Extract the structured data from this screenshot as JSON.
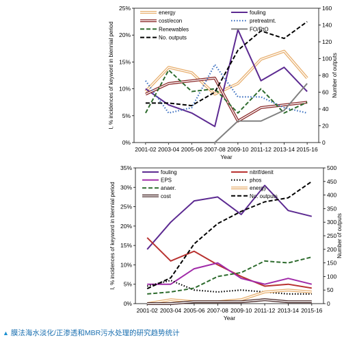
{
  "caption": "膜法海水淡化/正渗透和MBR污水处理的研究趋势统计",
  "chart_data": [
    {
      "type": "line",
      "xlabel": "Year",
      "ylabel": "I, % incidences of keyword in biennial period",
      "y2label": "Number of outputs",
      "categories": [
        "2001-02",
        "2003-04",
        "2005-06",
        "2007-08",
        "2009-10",
        "2011-12",
        "2013-14",
        "2015-16"
      ],
      "ylim": [
        0,
        25
      ],
      "yticks": [
        "0%",
        "5%",
        "10%",
        "15%",
        "20%",
        "25%"
      ],
      "y2lim": [
        0,
        160
      ],
      "y2ticks": [
        "0",
        "20",
        "40",
        "60",
        "80",
        "100",
        "120",
        "140",
        "160"
      ],
      "series": [
        {
          "name": "energy",
          "color": "#e8b070",
          "style": "double",
          "axis": "left",
          "values": [
            9.5,
            14.0,
            13.0,
            9.0,
            11.0,
            15.5,
            17.0,
            12.0
          ]
        },
        {
          "name": "fouling",
          "color": "#5c2a91",
          "style": "solid",
          "axis": "left",
          "values": [
            10.0,
            7.0,
            5.5,
            3.0,
            21.0,
            11.5,
            14.0,
            9.5
          ]
        },
        {
          "name": "cost/econ",
          "color": "#8b2a2a",
          "style": "double",
          "axis": "left",
          "values": [
            9.0,
            11.0,
            11.5,
            12.0,
            4.0,
            6.5,
            7.0,
            7.5
          ]
        },
        {
          "name": "pretreatmt.",
          "color": "#3a6fc0",
          "style": "dotted",
          "axis": "left",
          "values": [
            11.5,
            5.5,
            6.5,
            14.5,
            8.5,
            8.5,
            6.5,
            5.5
          ]
        },
        {
          "name": "Renewables",
          "color": "#2d6b2d",
          "style": "dashed",
          "axis": "left",
          "values": [
            5.5,
            13.5,
            9.5,
            10.0,
            5.5,
            10.0,
            5.5,
            7.5
          ]
        },
        {
          "name": "FO/RtO",
          "color": "#808080",
          "style": "solid",
          "axis": "left",
          "values": [
            0,
            0,
            0,
            0,
            4.0,
            4.0,
            6.0,
            11.0
          ]
        },
        {
          "name": "No. outputs",
          "color": "#000000",
          "style": "dashed",
          "axis": "right",
          "values": [
            47,
            47,
            44,
            60,
            110,
            133,
            124,
            144
          ]
        }
      ]
    },
    {
      "type": "line",
      "xlabel": "Year",
      "ylabel": "I, % incidences of keyword in biennial period",
      "y2label": "Number of outputs",
      "categories": [
        "2001-02",
        "2003-04",
        "2005-06",
        "2007-08",
        "2009-10",
        "2011-12",
        "2013-14",
        "2015-16"
      ],
      "ylim": [
        0,
        35
      ],
      "yticks": [
        "0%",
        "5%",
        "10%",
        "15%",
        "20%",
        "25%",
        "30%",
        "35%"
      ],
      "y2lim": [
        0,
        500
      ],
      "y2ticks": [
        "0",
        "50",
        "100",
        "150",
        "200",
        "250",
        "300",
        "350",
        "400",
        "450",
        "500"
      ],
      "series": [
        {
          "name": "fouling",
          "color": "#5c2a91",
          "style": "solid",
          "axis": "left",
          "values": [
            14.0,
            21.0,
            26.5,
            27.5,
            23.0,
            30.5,
            24.0,
            22.5
          ]
        },
        {
          "name": "nitrif/denit",
          "color": "#b8312f",
          "style": "solid",
          "axis": "left",
          "values": [
            17.0,
            11.0,
            13.5,
            10.0,
            7.0,
            4.5,
            5.0,
            4.0
          ]
        },
        {
          "name": "EPS",
          "color": "#a02aa8",
          "style": "solid",
          "axis": "left",
          "values": [
            5.0,
            5.0,
            9.0,
            10.5,
            6.5,
            5.0,
            6.5,
            5.0
          ]
        },
        {
          "name": "phos",
          "color": "#000000",
          "style": "dotted",
          "axis": "left",
          "values": [
            4.5,
            6.0,
            3.5,
            3.0,
            3.5,
            3.0,
            2.5,
            2.5
          ]
        },
        {
          "name": "anaer.",
          "color": "#2d6b2d",
          "style": "dashed",
          "axis": "left",
          "values": [
            2.5,
            3.0,
            4.0,
            7.0,
            8.0,
            11.0,
            10.5,
            12.0
          ]
        },
        {
          "name": "energy",
          "color": "#e8b070",
          "style": "double",
          "axis": "left",
          "values": [
            0,
            1.0,
            0.5,
            0.5,
            1.0,
            3.0,
            3.5,
            3.0
          ]
        },
        {
          "name": "cost",
          "color": "#4a2a2a",
          "style": "double",
          "axis": "left",
          "values": [
            0,
            0,
            0.5,
            0.5,
            0.5,
            1.0,
            0.5,
            0.5
          ]
        },
        {
          "name": "No. outputs",
          "color": "#000000",
          "style": "dashed",
          "axis": "right",
          "values": [
            55,
            95,
            220,
            295,
            340,
            375,
            390,
            450
          ]
        }
      ]
    }
  ]
}
